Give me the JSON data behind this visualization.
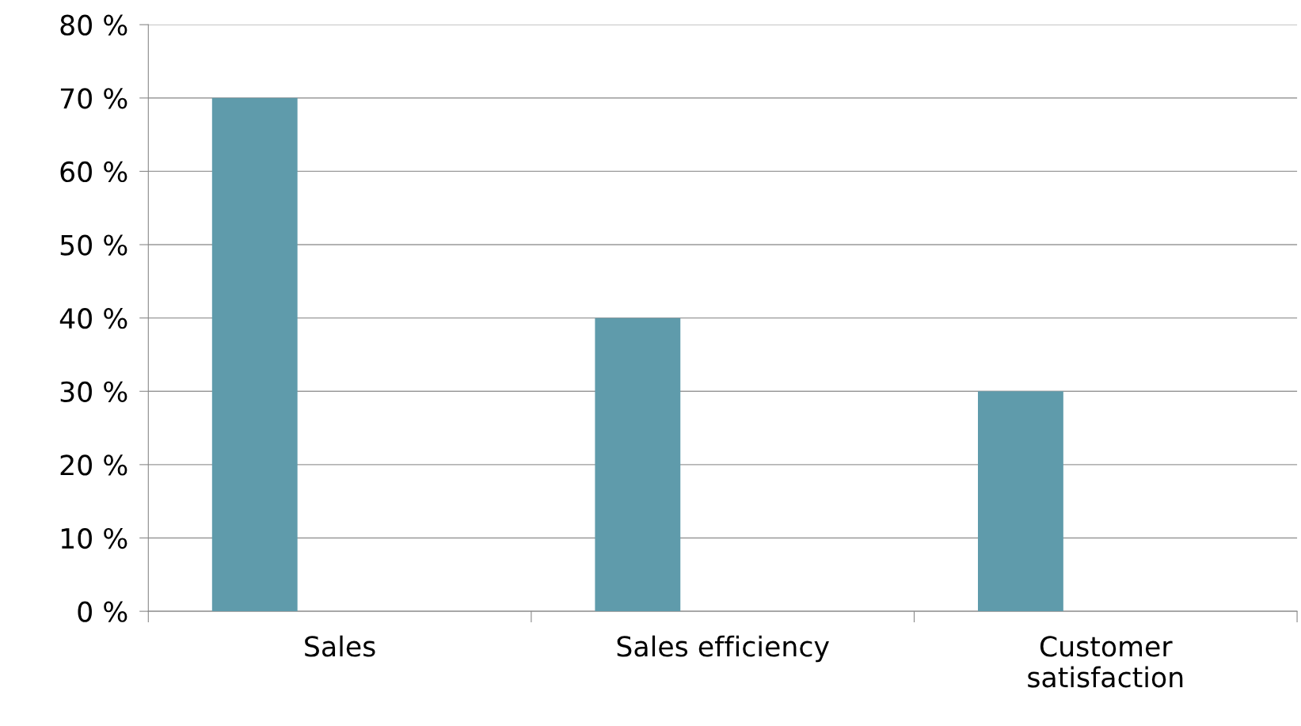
{
  "chart_data": {
    "type": "bar",
    "categories": [
      "Sales",
      "Sales efficiency",
      "Customer\nsatisfaction"
    ],
    "values": [
      70,
      40,
      30
    ],
    "color": "#5f9bab",
    "ylim": [
      0,
      80
    ],
    "yticks": [
      {
        "value": 0,
        "label": "0 %"
      },
      {
        "value": 10,
        "label": "10 %"
      },
      {
        "value": 20,
        "label": "20 %"
      },
      {
        "value": 30,
        "label": "30 %"
      },
      {
        "value": 40,
        "label": "40 %"
      },
      {
        "value": 50,
        "label": "50 %"
      },
      {
        "value": 60,
        "label": "60 %"
      },
      {
        "value": 70,
        "label": "70 %"
      },
      {
        "value": 80,
        "label": "80 %"
      }
    ],
    "grid": "y",
    "legend": false
  }
}
